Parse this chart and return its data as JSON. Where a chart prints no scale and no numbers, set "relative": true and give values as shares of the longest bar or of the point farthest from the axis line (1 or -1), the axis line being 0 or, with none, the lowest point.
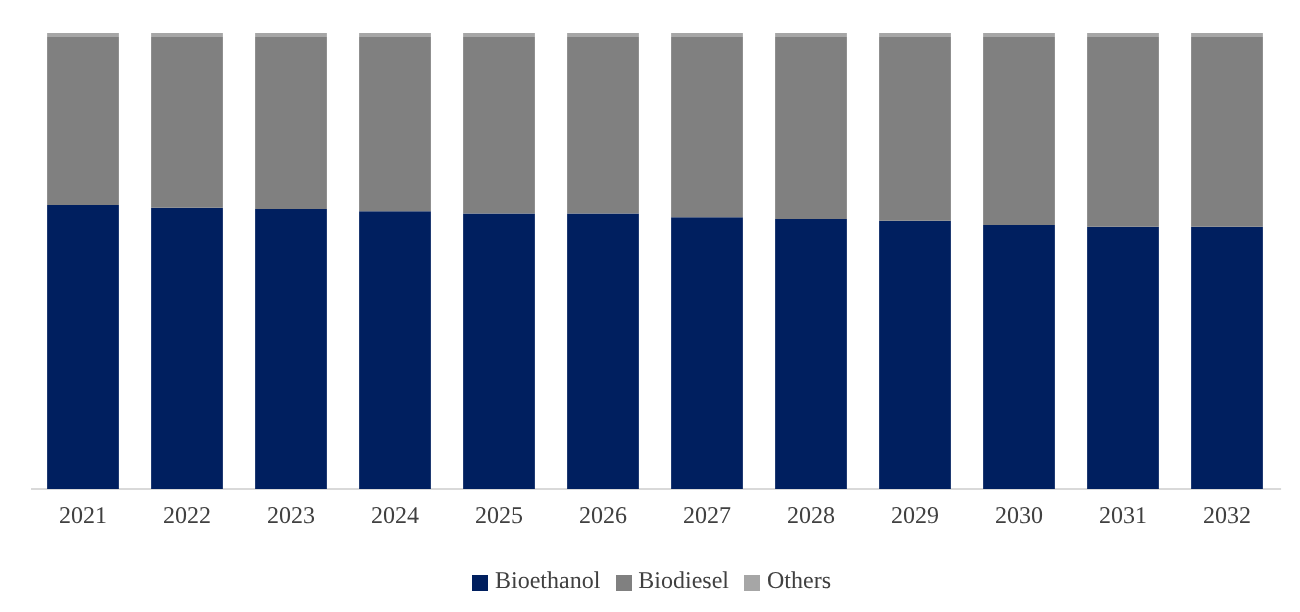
{
  "chart_data": {
    "type": "bar",
    "stacked": true,
    "relative": true,
    "legend": "bottom",
    "grid": false,
    "categories": [
      "2021",
      "2022",
      "2023",
      "2024",
      "2025",
      "2026",
      "2027",
      "2028",
      "2029",
      "2030",
      "2031",
      "2032"
    ],
    "series": [
      {
        "name": "Bioethanol",
        "color": "#001f5f",
        "values": [
          0.623,
          0.617,
          0.614,
          0.609,
          0.604,
          0.604,
          0.596,
          0.592,
          0.588,
          0.579,
          0.575,
          0.575
        ]
      },
      {
        "name": "Biodiesel",
        "color": "#808080",
        "values": [
          0.368,
          0.374,
          0.377,
          0.382,
          0.387,
          0.387,
          0.395,
          0.399,
          0.403,
          0.412,
          0.416,
          0.416
        ]
      },
      {
        "name": "Others",
        "color": "#a6a6a6",
        "values": [
          0.009,
          0.009,
          0.009,
          0.009,
          0.009,
          0.009,
          0.009,
          0.009,
          0.009,
          0.009,
          0.009,
          0.009
        ]
      }
    ]
  }
}
